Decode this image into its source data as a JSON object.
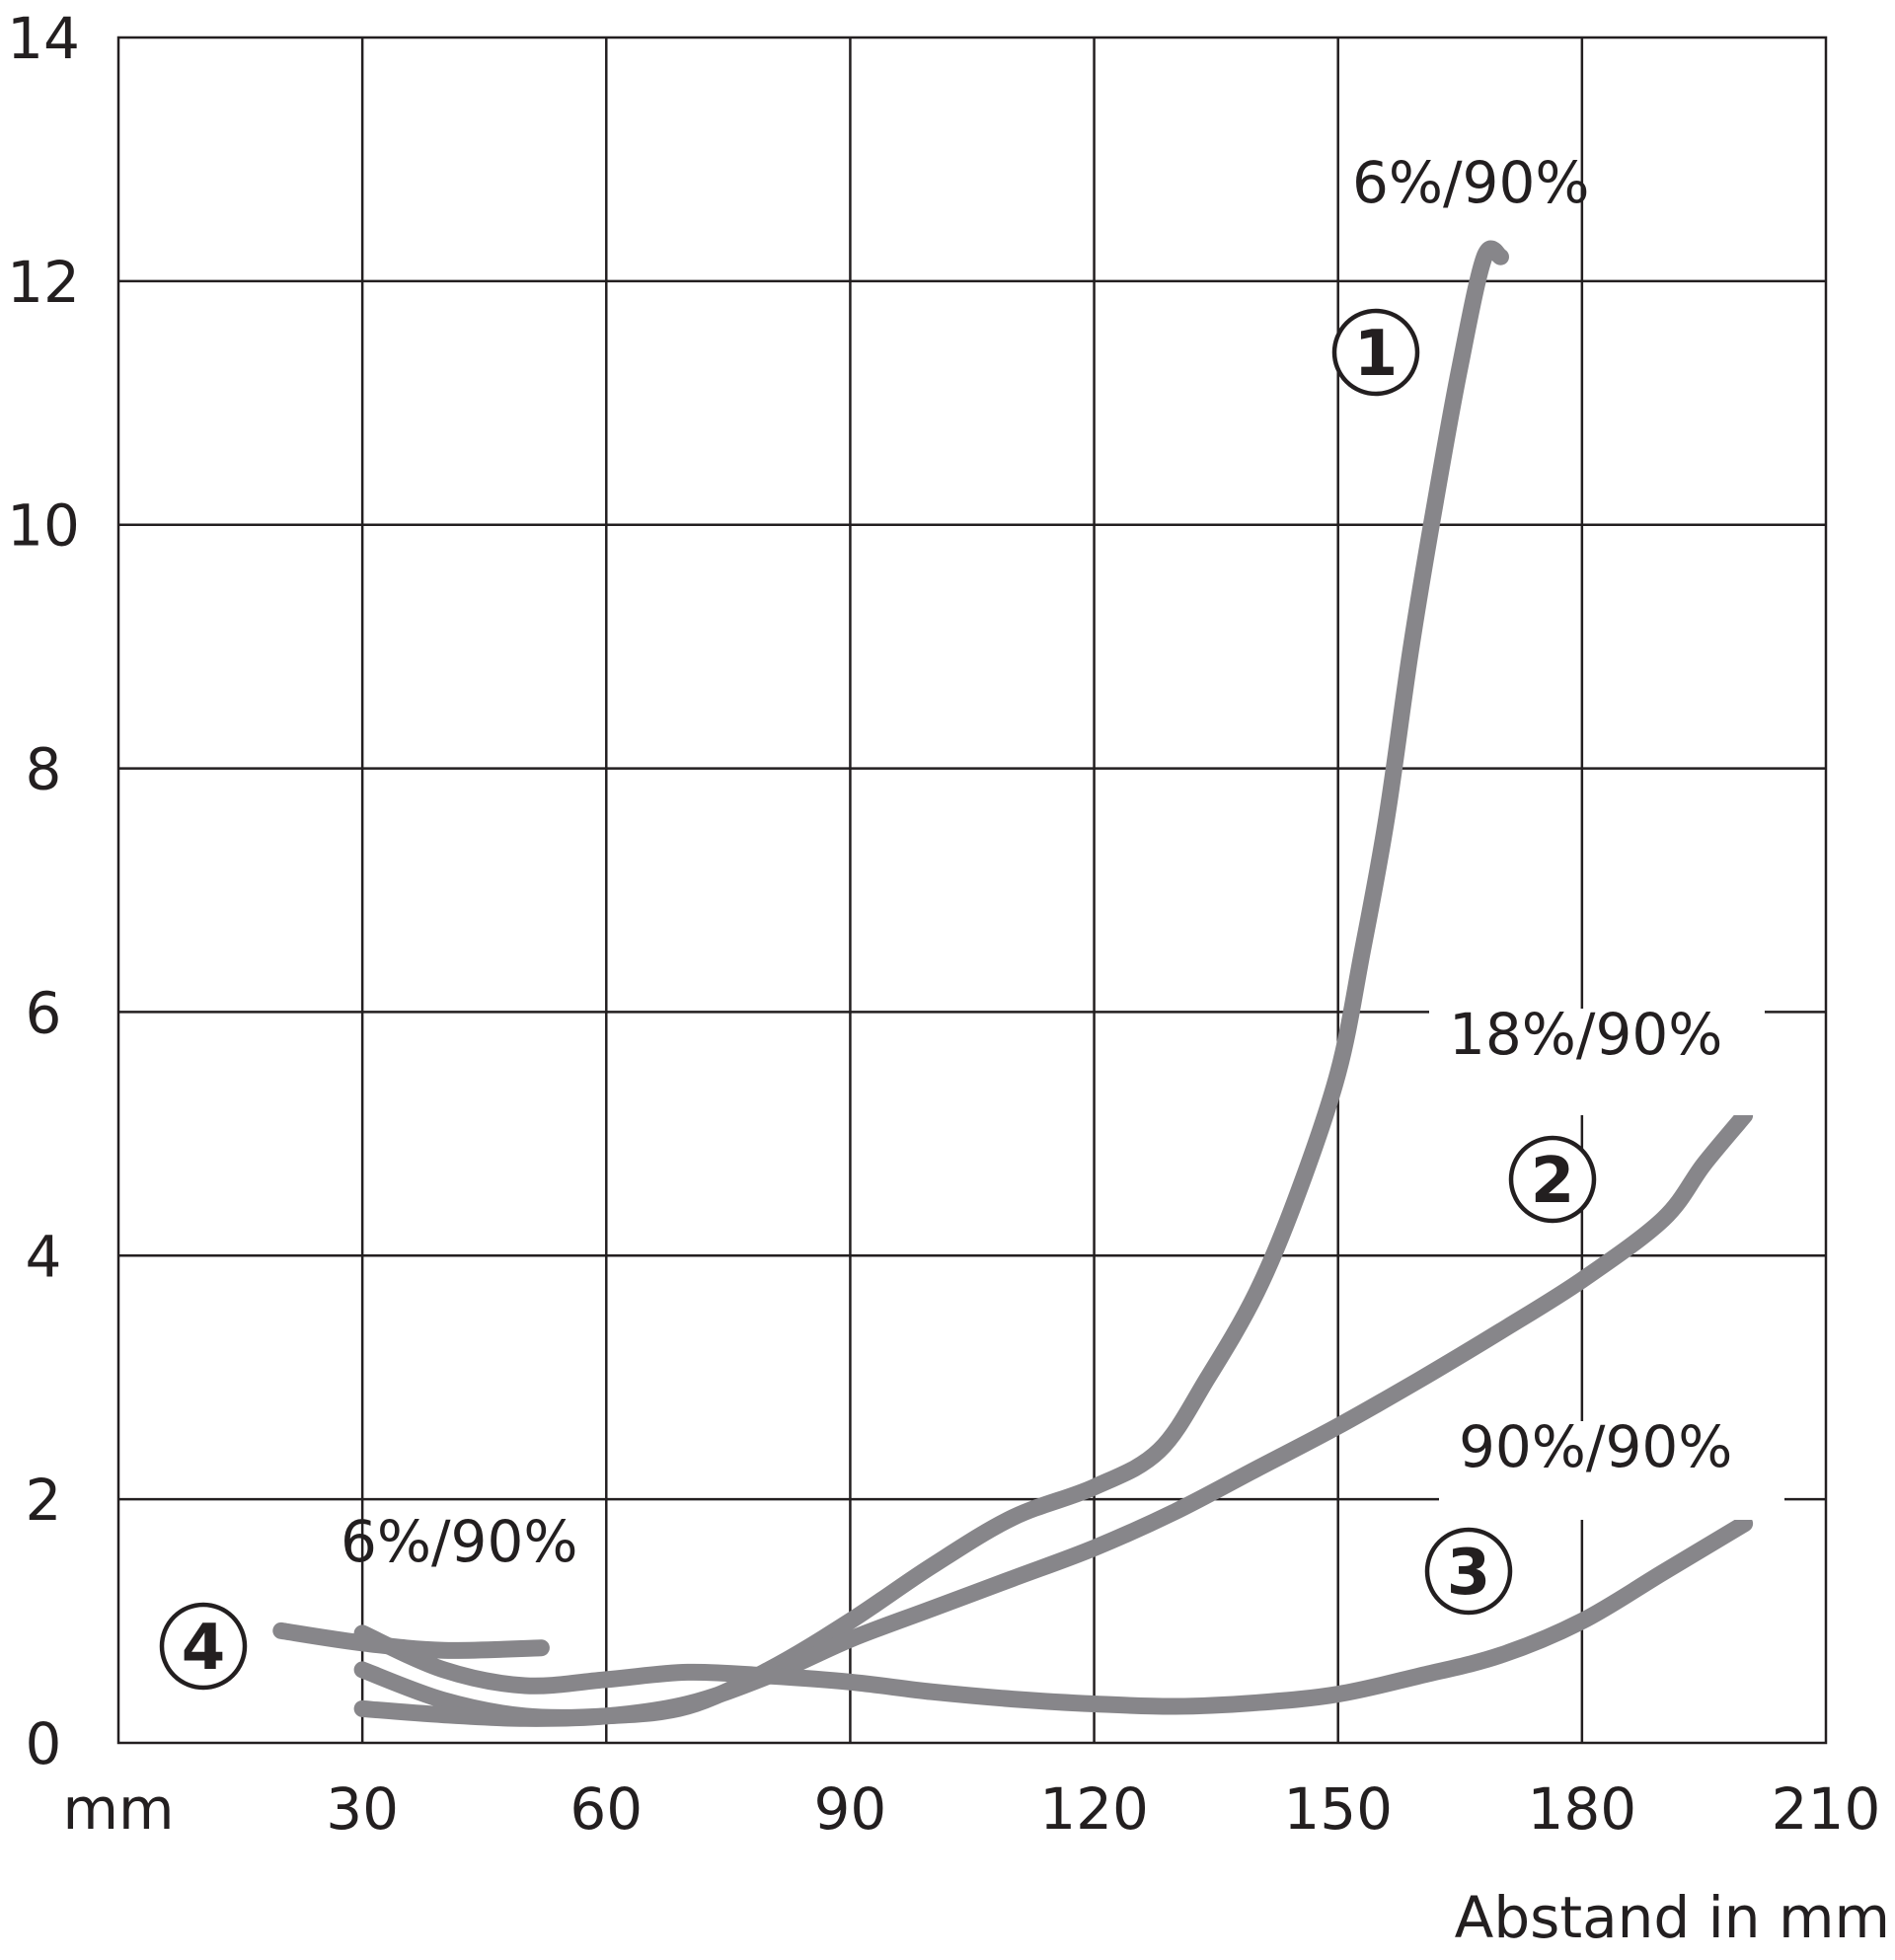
{
  "chart_data": {
    "type": "line",
    "title": "",
    "xlabel": "Abstand in mm",
    "x_unit": "mm",
    "ylabel": "",
    "xlim": [
      0,
      210
    ],
    "ylim": [
      0,
      14
    ],
    "x_ticks": [
      30,
      60,
      90,
      120,
      150,
      180,
      210
    ],
    "y_ticks": [
      0,
      2,
      4,
      6,
      8,
      10,
      12,
      14
    ],
    "grid": true,
    "series": [
      {
        "id": "1",
        "marker": "1",
        "name": "6%/90%",
        "color": "#87868a",
        "x": [
          30,
          40,
          50,
          60,
          70,
          80,
          90,
          100,
          110,
          120,
          128,
          134,
          140,
          145,
          150,
          153,
          156,
          159,
          162,
          165,
          168,
          170
        ],
        "y": [
          0.6,
          0.35,
          0.22,
          0.22,
          0.3,
          0.6,
          1.0,
          1.45,
          1.85,
          2.1,
          2.4,
          3.0,
          3.7,
          4.5,
          5.5,
          6.5,
          7.6,
          9.0,
          10.2,
          11.3,
          12.2,
          12.2
        ]
      },
      {
        "id": "2",
        "marker": "2",
        "name": "18%/90%",
        "color": "#87868a",
        "x": [
          30,
          40,
          50,
          60,
          70,
          80,
          90,
          100,
          110,
          120,
          130,
          140,
          150,
          160,
          170,
          180,
          190,
          195,
          200
        ],
        "y": [
          0.28,
          0.23,
          0.2,
          0.22,
          0.32,
          0.55,
          0.85,
          1.1,
          1.35,
          1.6,
          1.9,
          2.25,
          2.6,
          2.98,
          3.38,
          3.8,
          4.3,
          4.75,
          5.15
        ]
      },
      {
        "id": "3",
        "marker": "3",
        "name": "90%/90%",
        "color": "#87868a",
        "x": [
          30,
          40,
          50,
          60,
          70,
          80,
          90,
          100,
          110,
          120,
          130,
          140,
          150,
          160,
          170,
          180,
          190,
          200
        ],
        "y": [
          0.9,
          0.6,
          0.47,
          0.52,
          0.58,
          0.55,
          0.5,
          0.42,
          0.36,
          0.32,
          0.3,
          0.33,
          0.4,
          0.55,
          0.72,
          1.0,
          1.4,
          1.8
        ]
      },
      {
        "id": "4",
        "marker": "4",
        "name": "6%/90%",
        "color": "#87868a",
        "x": [
          20,
          30,
          40,
          52
        ],
        "y": [
          0.92,
          0.82,
          0.76,
          0.78
        ]
      }
    ]
  }
}
